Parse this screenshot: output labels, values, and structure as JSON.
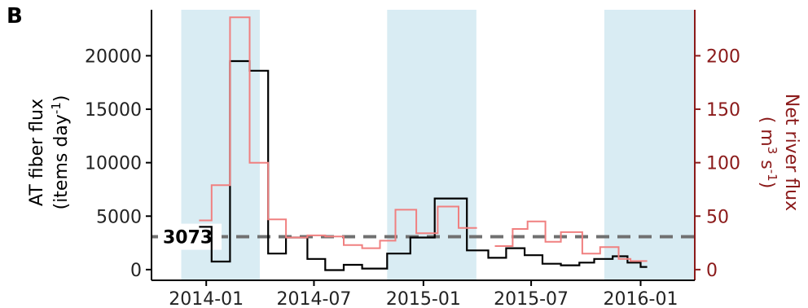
{
  "chart_data": {
    "type": "line",
    "subtype": "step",
    "panel_label": "B",
    "x_axis": {
      "type": "date",
      "range": [
        "2013-10-01",
        "2016-04-01"
      ],
      "ticks": [
        {
          "date": "2014-01-01",
          "label": "2014-01"
        },
        {
          "date": "2014-07-01",
          "label": "2014-07"
        },
        {
          "date": "2015-01-01",
          "label": "2015-01"
        },
        {
          "date": "2015-07-01",
          "label": "2015-07"
        },
        {
          "date": "2016-01-01",
          "label": "2016-01"
        }
      ]
    },
    "y_left": {
      "label_line1": "AT fiber flux",
      "label_line2_prefix": "(items day",
      "label_line2_sup": "-1",
      "label_line2_suffix": ")",
      "range": [
        -1000,
        24300
      ],
      "ticks": [
        0,
        5000,
        10000,
        15000,
        20000
      ],
      "color": "#000000"
    },
    "y_right": {
      "label_line1": "Net river flux",
      "label_line2_prefix": "( m",
      "label_line2_sup1": "3",
      "label_line2_mid": " s",
      "label_line2_sup2": "-1",
      "label_line2_suffix": ")",
      "range": [
        -10,
        243
      ],
      "ticks": [
        0,
        50,
        100,
        150,
        200
      ],
      "color": "#8b1a1a"
    },
    "shaded_periods": [
      {
        "start": "2013-11-20",
        "end": "2014-04-01"
      },
      {
        "start": "2014-11-01",
        "end": "2015-03-31"
      },
      {
        "start": "2015-11-01",
        "end": "2016-04-01"
      }
    ],
    "shade_color": "#d9ecf3",
    "reference_line": {
      "value": 3073,
      "label": "3073",
      "color": "#707070"
    },
    "series": [
      {
        "axis": "left",
        "color": "#000000",
        "steps": [
          {
            "start": "2013-12-20",
            "end": "2014-01-10",
            "y": 4000
          },
          {
            "start": "2014-01-10",
            "end": "2014-02-10",
            "y": 750
          },
          {
            "start": "2014-02-10",
            "end": "2014-03-15",
            "y": 19500
          },
          {
            "start": "2014-03-15",
            "end": "2014-04-15",
            "y": 18600
          },
          {
            "start": "2014-04-15",
            "end": "2014-05-15",
            "y": 1500
          },
          {
            "start": "2014-05-15",
            "end": "2014-06-20",
            "y": 3000
          },
          {
            "start": "2014-06-20",
            "end": "2014-07-20",
            "y": 1000
          },
          {
            "start": "2014-07-20",
            "end": "2014-08-20",
            "y": -50
          },
          {
            "start": "2014-08-20",
            "end": "2014-09-20",
            "y": 450
          },
          {
            "start": "2014-09-20",
            "end": "2014-11-01",
            "y": 100
          },
          {
            "start": "2014-11-01",
            "end": "2014-12-10",
            "y": 1500
          },
          {
            "start": "2014-12-10",
            "end": "2015-01-20",
            "y": 3000
          },
          {
            "start": "2015-01-20",
            "end": "2015-03-15",
            "y": 6650
          },
          {
            "start": "2015-03-15",
            "end": "2015-04-20",
            "y": 1800
          },
          {
            "start": "2015-04-20",
            "end": "2015-05-20",
            "y": 1100
          },
          {
            "start": "2015-05-20",
            "end": "2015-06-20",
            "y": 2000
          },
          {
            "start": "2015-06-20",
            "end": "2015-07-20",
            "y": 1350
          },
          {
            "start": "2015-07-20",
            "end": "2015-08-20",
            "y": 550
          },
          {
            "start": "2015-08-20",
            "end": "2015-09-20",
            "y": 400
          },
          {
            "start": "2015-09-20",
            "end": "2015-10-15",
            "y": 650
          },
          {
            "start": "2015-10-15",
            "end": "2015-11-15",
            "y": 1000
          },
          {
            "start": "2015-11-15",
            "end": "2015-12-10",
            "y": 1250
          },
          {
            "start": "2015-12-10",
            "end": "2016-01-01",
            "y": 650
          },
          {
            "start": "2016-01-01",
            "end": "2016-01-12",
            "y": 250
          }
        ]
      },
      {
        "axis": "right",
        "color": "#f08080",
        "steps": [
          {
            "start": "2013-12-20",
            "end": "2014-01-10",
            "y": 46
          },
          {
            "start": "2014-01-10",
            "end": "2014-02-10",
            "y": 79
          },
          {
            "start": "2014-02-10",
            "end": "2014-03-15",
            "y": 236
          },
          {
            "start": "2014-03-15",
            "end": "2014-04-15",
            "y": 100
          },
          {
            "start": "2014-04-15",
            "end": "2014-05-15",
            "y": 47
          },
          {
            "start": "2014-05-15",
            "end": "2014-06-20",
            "y": 30
          },
          {
            "start": "2014-06-20",
            "end": "2014-07-20",
            "y": 32
          },
          {
            "start": "2014-07-20",
            "end": "2014-08-20",
            "y": 31
          },
          {
            "start": "2014-08-20",
            "end": "2014-09-20",
            "y": 23
          },
          {
            "start": "2014-09-20",
            "end": "2014-10-20",
            "y": 20
          },
          {
            "start": "2014-10-20",
            "end": "2014-11-15",
            "y": 27
          },
          {
            "start": "2014-11-15",
            "end": "2014-12-20",
            "y": 56
          },
          {
            "start": "2014-12-20",
            "end": "2015-01-25",
            "y": 34
          },
          {
            "start": "2015-01-25",
            "end": "2015-03-01",
            "y": 59
          },
          {
            "start": "2015-03-01",
            "end": "2015-04-01",
            "y": 39
          },
          {
            "start": "2015-05-01",
            "end": "2015-05-31",
            "y": 22
          },
          {
            "start": "2015-05-31",
            "end": "2015-06-25",
            "y": 38
          },
          {
            "start": "2015-06-25",
            "end": "2015-07-25",
            "y": 45
          },
          {
            "start": "2015-07-25",
            "end": "2015-08-20",
            "y": 26
          },
          {
            "start": "2015-08-20",
            "end": "2015-09-25",
            "y": 35
          },
          {
            "start": "2015-09-25",
            "end": "2015-10-25",
            "y": 15
          },
          {
            "start": "2015-10-25",
            "end": "2015-11-25",
            "y": 21
          },
          {
            "start": "2015-11-25",
            "end": "2015-12-15",
            "y": 10
          },
          {
            "start": "2015-12-15",
            "end": "2016-01-12",
            "y": 8
          }
        ]
      }
    ]
  }
}
